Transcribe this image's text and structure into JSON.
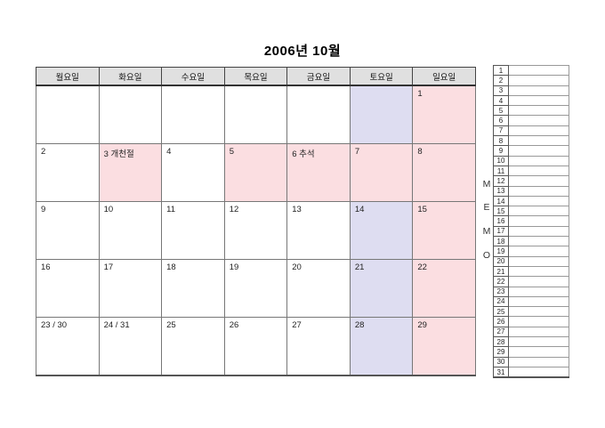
{
  "title": "2006년 10월",
  "weekday_headers": [
    "월요일",
    "화요일",
    "수요일",
    "목요일",
    "금요일",
    "토요일",
    "일요일"
  ],
  "weeks": [
    [
      {
        "label": "",
        "bg": "none"
      },
      {
        "label": "",
        "bg": "none"
      },
      {
        "label": "",
        "bg": "none"
      },
      {
        "label": "",
        "bg": "none"
      },
      {
        "label": "",
        "bg": "none"
      },
      {
        "label": "",
        "bg": "saturday"
      },
      {
        "label": "1",
        "bg": "sunday"
      }
    ],
    [
      {
        "label": "2",
        "bg": "none"
      },
      {
        "label": "3 개천절",
        "bg": "holiday"
      },
      {
        "label": "4",
        "bg": "none"
      },
      {
        "label": "5",
        "bg": "holiday"
      },
      {
        "label": "6 추석",
        "bg": "holiday"
      },
      {
        "label": "7",
        "bg": "holiday"
      },
      {
        "label": "8",
        "bg": "sunday"
      }
    ],
    [
      {
        "label": "9",
        "bg": "none"
      },
      {
        "label": "10",
        "bg": "none"
      },
      {
        "label": "11",
        "bg": "none"
      },
      {
        "label": "12",
        "bg": "none"
      },
      {
        "label": "13",
        "bg": "none"
      },
      {
        "label": "14",
        "bg": "saturday"
      },
      {
        "label": "15",
        "bg": "sunday"
      }
    ],
    [
      {
        "label": "16",
        "bg": "none"
      },
      {
        "label": "17",
        "bg": "none"
      },
      {
        "label": "18",
        "bg": "none"
      },
      {
        "label": "19",
        "bg": "none"
      },
      {
        "label": "20",
        "bg": "none"
      },
      {
        "label": "21",
        "bg": "saturday"
      },
      {
        "label": "22",
        "bg": "sunday"
      }
    ],
    [
      {
        "label": "23 / 30",
        "bg": "none"
      },
      {
        "label": "24 / 31",
        "bg": "none"
      },
      {
        "label": "25",
        "bg": "none"
      },
      {
        "label": "26",
        "bg": "none"
      },
      {
        "label": "27",
        "bg": "none"
      },
      {
        "label": "28",
        "bg": "saturday"
      },
      {
        "label": "29",
        "bg": "sunday"
      }
    ]
  ],
  "memo": {
    "letters": [
      "M",
      "E",
      "M",
      "O"
    ],
    "rows": [
      "1",
      "2",
      "3",
      "4",
      "5",
      "6",
      "7",
      "8",
      "9",
      "10",
      "11",
      "12",
      "13",
      "14",
      "15",
      "16",
      "17",
      "18",
      "19",
      "20",
      "21",
      "22",
      "23",
      "24",
      "25",
      "26",
      "27",
      "28",
      "29",
      "30",
      "31"
    ]
  },
  "colors": {
    "header_bg": "#E0E0E0",
    "saturday_bg": "#DEDDF1",
    "sunday_bg": "#FBDEE1",
    "holiday_bg": "#FBDEE1",
    "grid_line": "#777777"
  }
}
